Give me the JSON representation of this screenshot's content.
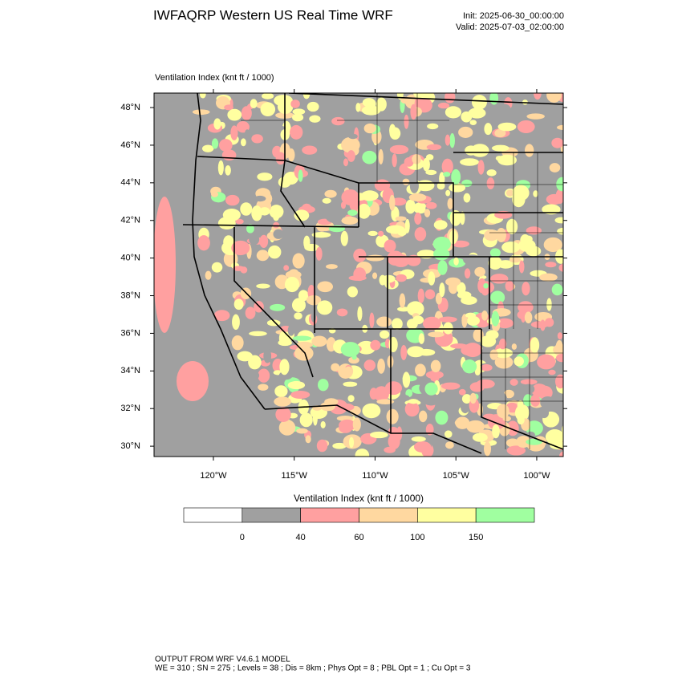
{
  "header": {
    "title": "IWFAQRP Western US Real Time WRF",
    "init": "Init: 2025-06-30_00:00:00",
    "valid": "Valid: 2025-07-03_02:00:00"
  },
  "map": {
    "title": "Ventilation Index   (knt ft / 1000)",
    "xlim": [
      -123.67,
      -98.36
    ],
    "ylim": [
      29.45,
      48.77
    ],
    "xticks": [
      {
        "value": -120,
        "label": "120°W"
      },
      {
        "value": -115,
        "label": "115°W"
      },
      {
        "value": -110,
        "label": "110°W"
      },
      {
        "value": -105,
        "label": "105°W"
      },
      {
        "value": -100,
        "label": "100°W"
      }
    ],
    "yticks": [
      {
        "value": 30,
        "label": "30°N"
      },
      {
        "value": 32,
        "label": "32°N"
      },
      {
        "value": 34,
        "label": "34°N"
      },
      {
        "value": 36,
        "label": "36°N"
      },
      {
        "value": 38,
        "label": "38°N"
      },
      {
        "value": 40,
        "label": "40°N"
      },
      {
        "value": 42,
        "label": "42°N"
      },
      {
        "value": 44,
        "label": "44°N"
      },
      {
        "value": 46,
        "label": "46°N"
      },
      {
        "value": 48,
        "label": "48°N"
      }
    ]
  },
  "colorbar": {
    "title": "Ventilation Index   (knt ft / 1000)",
    "levels": [
      0,
      40,
      60,
      100,
      150
    ],
    "colors": [
      "#ffffff",
      "#a0a0a0",
      "#ffa0a0",
      "#ffd8a0",
      "#ffffa0",
      "#a0ffa0"
    ]
  },
  "footer": {
    "line1": "OUTPUT FROM WRF V4.6.1 MODEL",
    "line2": "WE = 310 ; SN = 275 ; Levels = 38 ; Dis = 8km ; Phys Opt = 8 ; PBL Opt = 1 ; Cu Opt = 3"
  }
}
